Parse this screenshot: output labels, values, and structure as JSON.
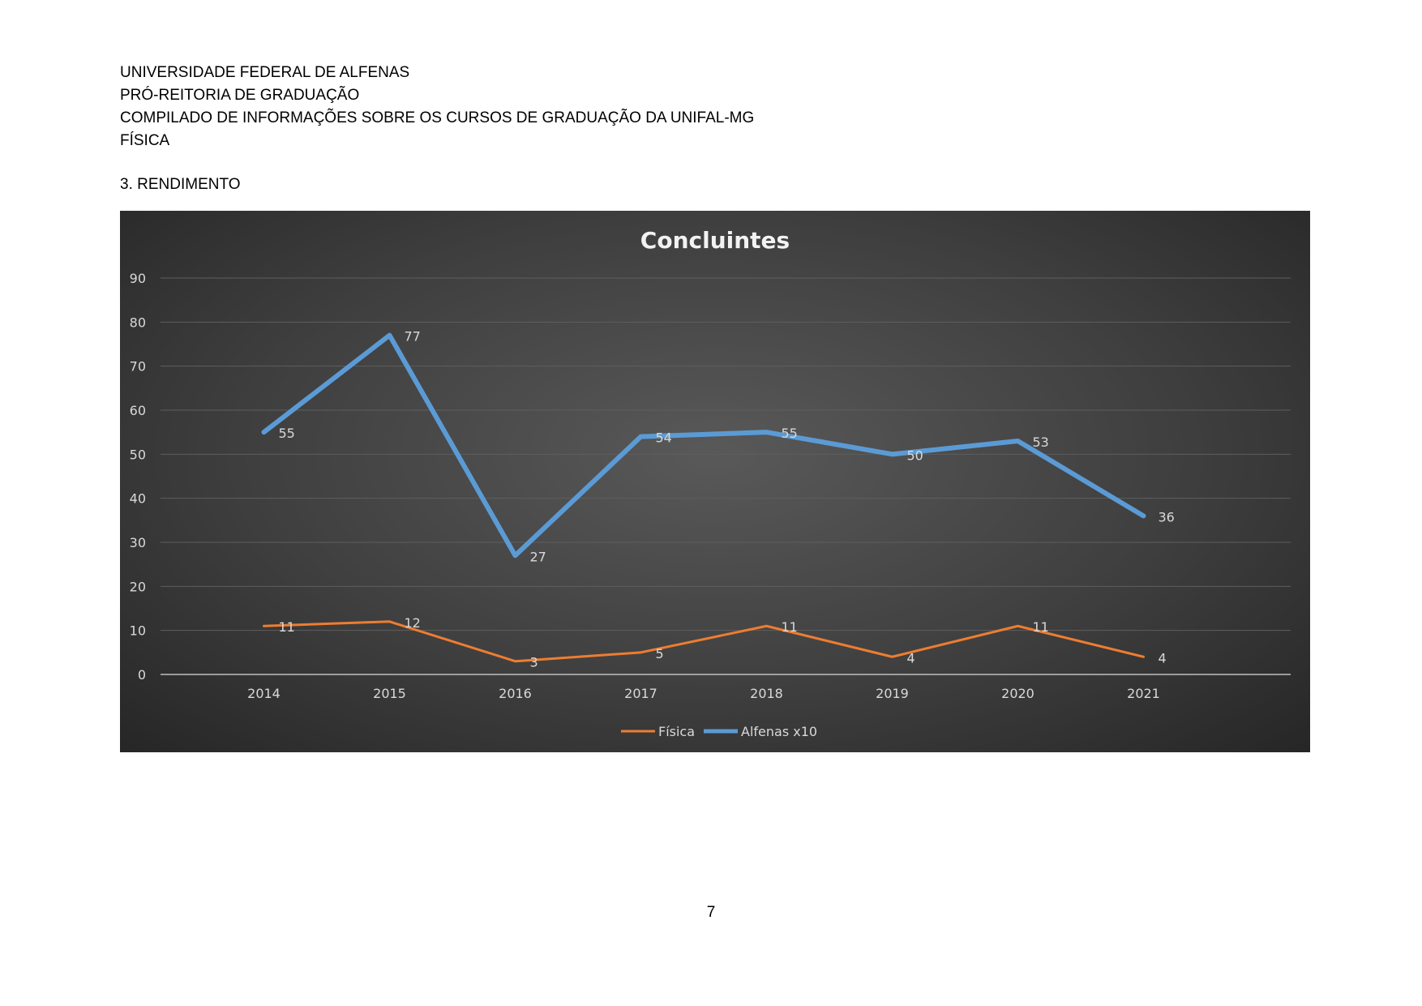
{
  "header": {
    "line1": "UNIVERSIDADE FEDERAL DE ALFENAS",
    "line2": "PRÓ-REITORIA DE GRADUAÇÃO",
    "line3": "COMPILADO DE INFORMAÇÕES SOBRE OS CURSOS DE GRADUAÇÃO DA UNIFAL-MG",
    "line4": "FÍSICA"
  },
  "section": {
    "title": "3. RENDIMENTO"
  },
  "page": {
    "number": "7"
  },
  "colors": {
    "fisica": "#ed7d31",
    "alfenas": "#5b9bd5",
    "text": "#d9d9d9",
    "title": "#f2f2f2",
    "grid": "#5e5e5e",
    "axis": "#bfbfbf"
  },
  "chart_data": {
    "type": "line",
    "title": "Concluintes",
    "x": [
      "2014",
      "2015",
      "2016",
      "2017",
      "2018",
      "2019",
      "2020",
      "2021"
    ],
    "yticks": [
      "0",
      "10",
      "20",
      "30",
      "40",
      "50",
      "60",
      "70",
      "80",
      "90"
    ],
    "ylim": [
      0,
      90
    ],
    "grid": true,
    "legend": "bottom",
    "series": [
      {
        "name": "Física",
        "values": [
          11,
          12,
          3,
          5,
          11,
          4,
          11,
          4
        ]
      },
      {
        "name": "Alfenas x10",
        "values": [
          55,
          77,
          27,
          54,
          55,
          50,
          53,
          36
        ]
      }
    ]
  }
}
